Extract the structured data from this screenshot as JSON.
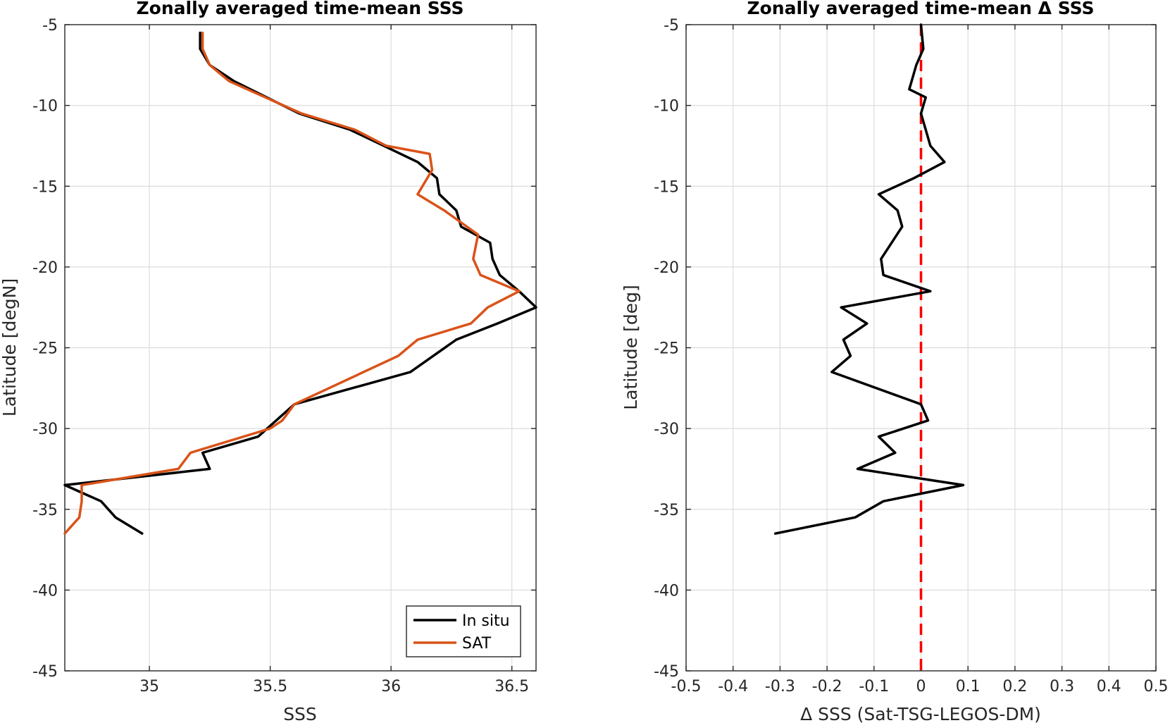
{
  "chart_data": [
    {
      "type": "line",
      "title": "Zonally averaged time-mean SSS",
      "xlabel": "SSS",
      "ylabel": "Latitude [degN]",
      "xlim": [
        34.65,
        36.6
      ],
      "ylim": [
        -45,
        -5
      ],
      "xticks": [
        35,
        35.5,
        36,
        36.5
      ],
      "xtick_labels": [
        "35",
        "35.5",
        "36",
        "36.5"
      ],
      "yticks": [
        -45,
        -40,
        -35,
        -30,
        -25,
        -20,
        -15,
        -10,
        -5
      ],
      "ytick_labels": [
        "-45",
        "-40",
        "-35",
        "-30",
        "-25",
        "-20",
        "-15",
        "-10",
        "-5"
      ],
      "grid": true,
      "legend": "bottom-right",
      "series": [
        {
          "name": "In situ",
          "color": "#000000",
          "x": [
            35.21,
            35.21,
            35.25,
            35.35,
            35.62,
            35.83,
            35.97,
            36.11,
            36.19,
            36.2,
            36.27,
            36.29,
            36.41,
            36.42,
            36.45,
            36.53,
            36.6,
            36.44,
            36.27,
            36.08,
            35.6,
            35.45,
            35.22,
            35.25,
            34.65,
            34.8,
            34.86,
            34.97
          ],
          "y": [
            -5.5,
            -6.5,
            -7.5,
            -8.5,
            -10.5,
            -11.5,
            -12.5,
            -13.5,
            -14.5,
            -15.5,
            -16.5,
            -17.5,
            -18.5,
            -19.5,
            -20.5,
            -21.5,
            -22.5,
            -23.5,
            -24.5,
            -26.5,
            -28.5,
            -30.5,
            -31.5,
            -32.5,
            -33.5,
            -34.5,
            -35.5,
            -36.5
          ]
        },
        {
          "name": "SAT",
          "color": "#d95319",
          "x": [
            35.22,
            35.22,
            35.25,
            35.33,
            35.63,
            35.85,
            35.98,
            36.16,
            36.17,
            36.11,
            36.22,
            36.36,
            36.34,
            36.37,
            36.53,
            36.4,
            36.33,
            36.11,
            36.03,
            35.6,
            35.55,
            35.5,
            35.17,
            35.12,
            34.72,
            34.72,
            34.71,
            34.65
          ],
          "y": [
            -5.5,
            -6.5,
            -7.5,
            -8.5,
            -10.5,
            -11.5,
            -12.5,
            -13.0,
            -14.0,
            -15.5,
            -16.5,
            -18.0,
            -19.5,
            -20.5,
            -21.5,
            -22.5,
            -23.5,
            -24.5,
            -25.5,
            -28.5,
            -29.5,
            -30.0,
            -31.5,
            -32.5,
            -33.5,
            -34.5,
            -35.5,
            -36.5
          ]
        }
      ]
    },
    {
      "type": "line",
      "title": "Zonally averaged time-mean Δ SSS",
      "xlabel": "Δ SSS (Sat-TSG-LEGOS-DM)",
      "ylabel": "Latitude [deg]",
      "xlim": [
        -0.5,
        0.5
      ],
      "ylim": [
        -45,
        -5
      ],
      "xticks": [
        -0.5,
        -0.4,
        -0.3,
        -0.2,
        -0.1,
        0,
        0.1,
        0.2,
        0.3,
        0.4,
        0.5
      ],
      "xtick_labels": [
        "-0.5",
        "-0.4",
        "-0.3",
        "-0.2",
        "-0.1",
        "0",
        "0.1",
        "0.2",
        "0.3",
        "0.4",
        "0.5"
      ],
      "yticks": [
        -45,
        -40,
        -35,
        -30,
        -25,
        -20,
        -15,
        -10,
        -5
      ],
      "ytick_labels": [
        "-45",
        "-40",
        "-35",
        "-30",
        "-25",
        "-20",
        "-15",
        "-10",
        "-5"
      ],
      "grid": true,
      "reference_line": {
        "x": 0,
        "color": "#ff0000",
        "style": "dashed"
      },
      "series": [
        {
          "color": "#000000",
          "x": [
            0.0,
            0.005,
            -0.01,
            -0.02,
            -0.025,
            0.01,
            0.0,
            0.01,
            0.02,
            0.05,
            -0.015,
            -0.09,
            -0.05,
            -0.04,
            -0.085,
            -0.08,
            0.02,
            -0.17,
            -0.115,
            -0.165,
            -0.15,
            -0.19,
            0.0,
            0.015,
            -0.09,
            -0.055,
            -0.135,
            0.09,
            -0.08,
            -0.14,
            -0.31
          ],
          "y": [
            -5.0,
            -6.5,
            -7.5,
            -8.5,
            -9.0,
            -9.5,
            -10.5,
            -11.5,
            -12.5,
            -13.5,
            -14.5,
            -15.5,
            -16.5,
            -17.5,
            -19.5,
            -20.5,
            -21.5,
            -22.5,
            -23.5,
            -24.5,
            -25.5,
            -26.5,
            -28.5,
            -29.5,
            -30.5,
            -31.5,
            -32.5,
            -33.5,
            -34.5,
            -35.5,
            -36.5
          ]
        }
      ]
    }
  ],
  "legend": {
    "entries": [
      {
        "label": "In situ",
        "color": "#000000"
      },
      {
        "label": "SAT",
        "color": "#d95319"
      }
    ]
  }
}
